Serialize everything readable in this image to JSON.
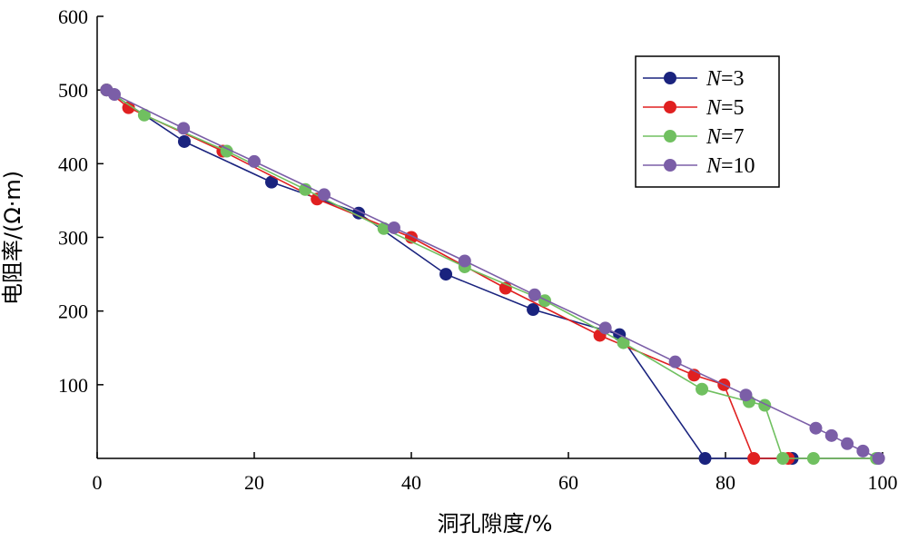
{
  "chart_data": {
    "type": "line",
    "title": "",
    "xlabel": "洞孔隙度/%",
    "ylabel": "电阻率/(Ω·m)",
    "xlim": [
      0,
      100
    ],
    "ylim": [
      0,
      600
    ],
    "xticks": [
      "0",
      "20",
      "40",
      "60",
      "80",
      "100"
    ],
    "yticks": [
      "100",
      "200",
      "300",
      "400",
      "500",
      "600"
    ],
    "grid": false,
    "legend_position": "top-right",
    "series": [
      {
        "name": "N=3",
        "legend_italic": "N",
        "legend_rest": "=3",
        "color": "#1a237e",
        "x": [
          1.2,
          11.1,
          22.2,
          33.3,
          44.4,
          55.5,
          66.5,
          77.4,
          88.5
        ],
        "y": [
          500,
          430,
          375,
          333,
          250,
          202,
          168,
          0,
          0
        ]
      },
      {
        "name": "N=5",
        "legend_italic": "N",
        "legend_rest": "=5",
        "color": "#e02020",
        "x": [
          1.2,
          4.0,
          16.0,
          28.0,
          40.0,
          52.0,
          64.0,
          76.0,
          79.8,
          83.6,
          88.0
        ],
        "y": [
          500,
          476,
          417,
          352,
          300,
          231,
          167,
          113,
          100,
          0,
          0
        ]
      },
      {
        "name": "N=7",
        "legend_italic": "N",
        "legend_rest": "=7",
        "color": "#70c060",
        "x": [
          1.2,
          6.0,
          16.5,
          26.5,
          36.5,
          46.8,
          57.0,
          67.0,
          77.0,
          83.0,
          85.0,
          87.3,
          91.2,
          99.2
        ],
        "y": [
          500,
          466,
          417,
          365,
          312,
          260,
          214,
          157,
          94,
          77,
          72,
          0,
          0,
          0
        ]
      },
      {
        "name": "N=10",
        "legend_italic": "N",
        "legend_rest": "=10",
        "color": "#7b5ea7",
        "x": [
          1.2,
          2.2,
          11.0,
          20.0,
          28.9,
          37.8,
          46.8,
          55.7,
          64.7,
          73.6,
          82.6,
          91.5,
          93.5,
          95.5,
          97.5,
          99.5
        ],
        "y": [
          500,
          494,
          448,
          403,
          358,
          313,
          268,
          222,
          177,
          131,
          86,
          41,
          31,
          20,
          10,
          0
        ]
      }
    ]
  }
}
